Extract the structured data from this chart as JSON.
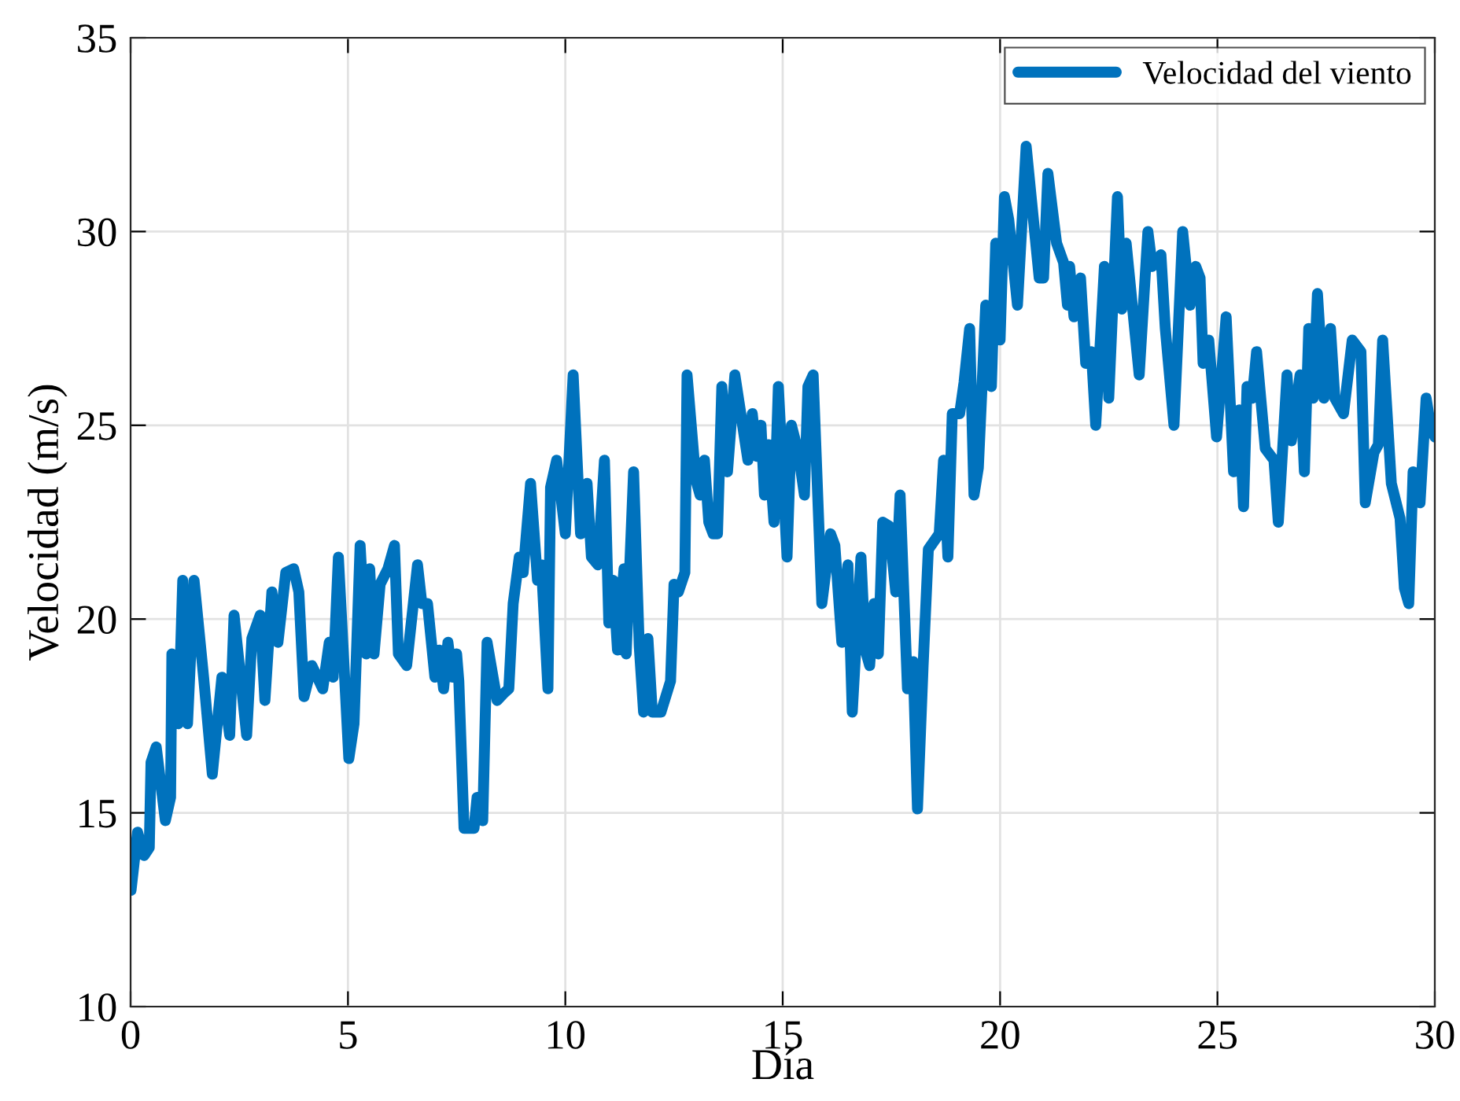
{
  "chart_data": {
    "type": "line",
    "xlabel": "Día",
    "ylabel": "Velocidad (m/s)",
    "xlim": [
      0,
      30
    ],
    "ylim": [
      10,
      35
    ],
    "xticks": [
      0,
      5,
      10,
      15,
      20,
      25,
      30
    ],
    "yticks": [
      10,
      15,
      20,
      25,
      30,
      35
    ],
    "grid": true,
    "legend": "top right",
    "line_style": "solid",
    "marker": "none",
    "series": [
      {
        "name": "Velocidad del viento",
        "color": "#0072bd",
        "x": [
          0.01,
          0.16,
          0.31,
          0.43,
          0.47,
          0.59,
          0.8,
          0.92,
          0.95,
          1.1,
          1.2,
          1.31,
          1.46,
          1.68,
          1.88,
          2.1,
          2.28,
          2.38,
          2.67,
          2.79,
          2.98,
          3.09,
          3.25,
          3.39,
          3.57,
          3.75,
          3.87,
          3.99,
          4.17,
          4.42,
          4.57,
          4.66,
          4.78,
          5.02,
          5.14,
          5.28,
          5.42,
          5.5,
          5.6,
          5.74,
          5.92,
          6.07,
          6.16,
          6.35,
          6.6,
          6.7,
          6.83,
          7.0,
          7.1,
          7.2,
          7.3,
          7.4,
          7.5,
          7.55,
          7.67,
          7.9,
          7.97,
          8.1,
          8.2,
          8.43,
          8.6,
          8.7,
          8.8,
          8.94,
          9.03,
          9.2,
          9.36,
          9.45,
          9.6,
          9.66,
          9.8,
          10.0,
          10.18,
          10.35,
          10.5,
          10.6,
          10.75,
          10.9,
          11.0,
          11.1,
          11.2,
          11.35,
          11.4,
          11.57,
          11.7,
          11.8,
          11.9,
          12.0,
          12.2,
          12.42,
          12.5,
          12.6,
          12.75,
          12.8,
          13.0,
          13.1,
          13.2,
          13.3,
          13.4,
          13.5,
          13.6,
          13.73,
          13.9,
          14.2,
          14.3,
          14.4,
          14.5,
          14.58,
          14.67,
          14.8,
          14.9,
          15.1,
          15.2,
          15.36,
          15.5,
          15.58,
          15.7,
          15.9,
          16.1,
          16.2,
          16.36,
          16.5,
          16.6,
          16.8,
          16.9,
          17.0,
          17.1,
          17.2,
          17.3,
          17.45,
          17.6,
          17.7,
          17.87,
          18.0,
          18.1,
          18.23,
          18.35,
          18.6,
          18.7,
          18.8,
          18.9,
          19.07,
          19.17,
          19.3,
          19.4,
          19.5,
          19.67,
          19.8,
          19.9,
          20.0,
          20.1,
          20.2,
          20.4,
          20.6,
          20.9,
          21.0,
          21.1,
          21.3,
          21.46,
          21.55,
          21.6,
          21.7,
          21.85,
          21.97,
          22.1,
          22.2,
          22.4,
          22.5,
          22.7,
          22.8,
          22.9,
          23.2,
          23.4,
          23.5,
          23.7,
          23.8,
          24.0,
          24.2,
          24.37,
          24.5,
          24.6,
          24.67,
          24.8,
          24.98,
          25.2,
          25.37,
          25.5,
          25.6,
          25.68,
          25.8,
          25.9,
          26.1,
          26.3,
          26.4,
          26.6,
          26.7,
          26.9,
          27.0,
          27.1,
          27.2,
          27.3,
          27.45,
          27.6,
          27.7,
          27.9,
          28.1,
          28.3,
          28.4,
          28.6,
          28.7,
          28.8,
          29.0,
          29.2,
          29.3,
          29.4,
          29.5,
          29.66,
          29.8,
          29.9,
          30.0
        ],
        "values": [
          13.0,
          14.5,
          13.9,
          14.1,
          16.3,
          16.7,
          14.8,
          15.4,
          19.1,
          17.3,
          21.0,
          17.3,
          21.0,
          18.5,
          16.0,
          18.5,
          17.0,
          20.1,
          17.0,
          19.5,
          20.1,
          17.9,
          20.7,
          19.4,
          21.2,
          21.3,
          20.7,
          18.0,
          18.8,
          18.2,
          19.4,
          18.5,
          21.6,
          16.4,
          17.3,
          21.9,
          19.1,
          21.3,
          19.1,
          20.9,
          21.3,
          21.9,
          19.1,
          18.8,
          21.4,
          20.4,
          20.4,
          18.5,
          19.2,
          18.2,
          19.4,
          18.5,
          19.1,
          18.4,
          14.6,
          14.6,
          15.4,
          14.8,
          19.4,
          17.9,
          18.1,
          18.2,
          20.4,
          21.6,
          21.2,
          23.5,
          21.0,
          21.4,
          18.2,
          23.4,
          24.1,
          22.2,
          26.3,
          22.2,
          23.5,
          21.6,
          21.4,
          24.1,
          19.9,
          21.0,
          19.2,
          21.3,
          19.1,
          23.8,
          19.3,
          17.6,
          19.5,
          17.6,
          17.6,
          18.4,
          20.9,
          20.7,
          21.2,
          26.3,
          23.6,
          23.2,
          24.1,
          22.5,
          22.2,
          22.2,
          26.0,
          23.8,
          26.3,
          24.1,
          25.3,
          24.2,
          25.0,
          23.2,
          24.5,
          22.5,
          26.0,
          21.6,
          25.0,
          24.3,
          23.2,
          26.0,
          26.3,
          20.4,
          22.2,
          21.9,
          19.4,
          21.4,
          17.6,
          21.6,
          19.2,
          18.8,
          20.4,
          19.1,
          22.5,
          22.4,
          20.7,
          23.2,
          18.2,
          18.9,
          15.1,
          18.8,
          21.8,
          22.2,
          24.1,
          21.6,
          25.3,
          25.3,
          26.1,
          27.5,
          23.2,
          23.9,
          28.1,
          26.0,
          29.7,
          27.2,
          30.9,
          30.3,
          28.1,
          32.2,
          28.8,
          28.8,
          31.5,
          29.7,
          29.2,
          28.1,
          29.1,
          27.8,
          28.8,
          26.6,
          26.9,
          25.0,
          29.1,
          25.7,
          30.9,
          28.0,
          29.7,
          26.3,
          30.0,
          29.1,
          29.4,
          27.5,
          25.0,
          30.0,
          28.1,
          29.1,
          28.8,
          26.6,
          27.2,
          24.7,
          27.8,
          23.8,
          25.4,
          22.9,
          26.0,
          25.7,
          26.9,
          24.4,
          24.1,
          22.5,
          26.3,
          24.6,
          26.3,
          23.8,
          27.5,
          25.7,
          28.4,
          25.7,
          27.5,
          25.7,
          25.3,
          27.2,
          26.9,
          23.0,
          24.3,
          24.5,
          27.2,
          23.5,
          22.6,
          20.8,
          20.4,
          23.8,
          23.0,
          25.7,
          25.0,
          24.7
        ]
      }
    ]
  }
}
